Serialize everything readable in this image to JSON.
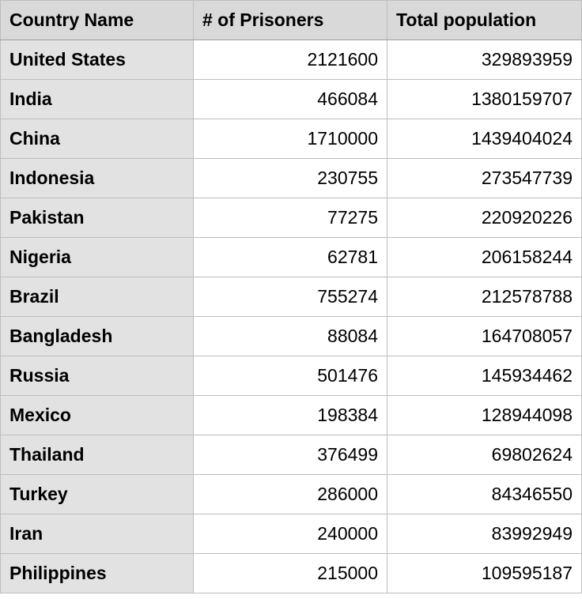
{
  "table": {
    "headers": {
      "country": "Country Name",
      "prisoners": "# of Prisoners",
      "population": "Total population"
    },
    "rows": [
      {
        "country": "United States",
        "prisoners": "2121600",
        "population": "329893959"
      },
      {
        "country": "India",
        "prisoners": "466084",
        "population": "1380159707"
      },
      {
        "country": "China",
        "prisoners": "1710000",
        "population": "1439404024"
      },
      {
        "country": "Indonesia",
        "prisoners": "230755",
        "population": "273547739"
      },
      {
        "country": "Pakistan",
        "prisoners": "77275",
        "population": "220920226"
      },
      {
        "country": "Nigeria",
        "prisoners": "62781",
        "population": "206158244"
      },
      {
        "country": "Brazil",
        "prisoners": "755274",
        "population": "212578788"
      },
      {
        "country": "Bangladesh",
        "prisoners": "88084",
        "population": "164708057"
      },
      {
        "country": "Russia",
        "prisoners": "501476",
        "population": "145934462"
      },
      {
        "country": "Mexico",
        "prisoners": "198384",
        "population": "128944098"
      },
      {
        "country": "Thailand",
        "prisoners": "376499",
        "population": "69802624"
      },
      {
        "country": "Turkey",
        "prisoners": "286000",
        "population": "84346550"
      },
      {
        "country": "Iran",
        "prisoners": "240000",
        "population": "83992949"
      },
      {
        "country": "Philippines",
        "prisoners": "215000",
        "population": "109595187"
      }
    ]
  },
  "colors": {
    "header_bg": "#d9d9d9",
    "first_column_bg": "#e2e2e2",
    "cell_bg": "#ffffff",
    "grid_line": "#bdbdbd"
  }
}
